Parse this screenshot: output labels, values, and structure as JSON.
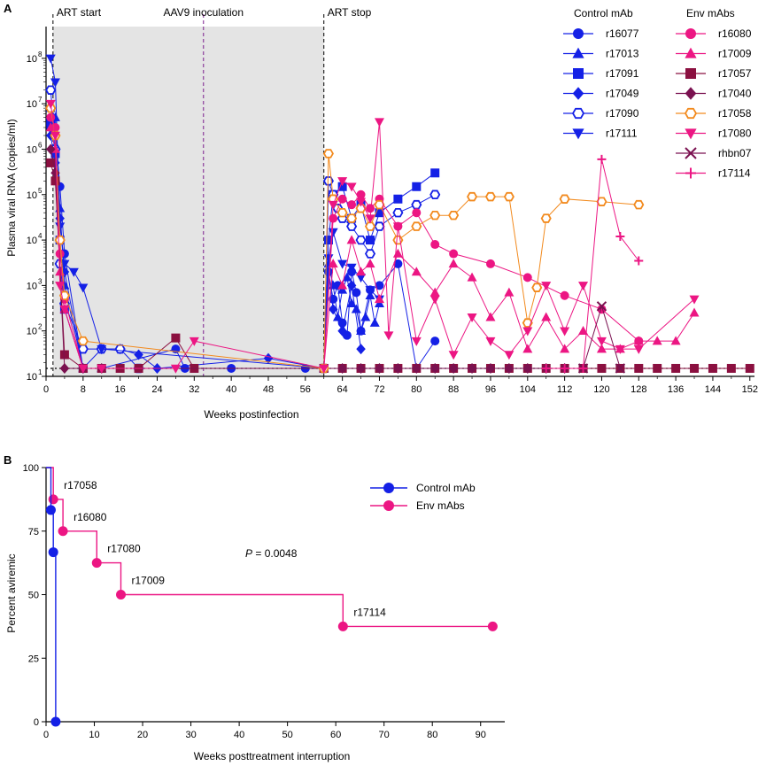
{
  "chart_data": [
    {
      "panel_label": "A",
      "type": "line",
      "xlabel": "Weeks postinfection",
      "ylabel": "Plasma viral RNA (copies/ml)",
      "xlim": [
        0,
        153
      ],
      "xticks": [
        0,
        8,
        16,
        24,
        32,
        40,
        48,
        56,
        64,
        72,
        80,
        88,
        96,
        104,
        112,
        120,
        128,
        136,
        144,
        152
      ],
      "ylim": [
        10,
        500000000
      ],
      "yscale": "log",
      "yticks": [
        10,
        100,
        1000,
        10000,
        100000,
        1000000,
        10000000,
        100000000
      ],
      "ytick_labels": [
        "10",
        "10",
        "10",
        "10",
        "10",
        "10",
        "10",
        "10"
      ],
      "ytick_exponents": [
        "1",
        "2",
        "3",
        "4",
        "5",
        "6",
        "7",
        "8"
      ],
      "detection_limit": 15,
      "shaded_region": [
        1.5,
        60
      ],
      "events": [
        {
          "label": "ART start",
          "x": 1.5
        },
        {
          "label": "AAV9 inoculation",
          "x": 34
        },
        {
          "label": "ART stop",
          "x": 60
        }
      ],
      "legend_groups": [
        {
          "title": "Control mAb",
          "color": "#1420E6",
          "entries": [
            {
              "name": "r16077",
              "marker": "circle"
            },
            {
              "name": "r17013",
              "marker": "triangle-up"
            },
            {
              "name": "r17091",
              "marker": "square"
            },
            {
              "name": "r17049",
              "marker": "diamond"
            },
            {
              "name": "r17090",
              "marker": "hexagon-open"
            },
            {
              "name": "r17111",
              "marker": "triangle-down"
            }
          ]
        },
        {
          "title": "Env mAbs",
          "entries": [
            {
              "name": "r16080",
              "marker": "circle",
              "color": "#EC1683"
            },
            {
              "name": "r17009",
              "marker": "triangle-up",
              "color": "#EC1683"
            },
            {
              "name": "r17057",
              "marker": "square",
              "color": "#8B1040"
            },
            {
              "name": "r17040",
              "marker": "diamond",
              "color": "#7A1150"
            },
            {
              "name": "r17058",
              "marker": "hexagon-open",
              "color": "#F28A1E"
            },
            {
              "name": "r17080",
              "marker": "triangle-down",
              "color": "#EC1683"
            },
            {
              "name": "rhbn07",
              "marker": "x",
              "color": "#7A1150"
            },
            {
              "name": "r17114",
              "marker": "plus",
              "color": "#EC1683"
            }
          ]
        }
      ],
      "series": [
        {
          "name": "r16077",
          "color": "#1420E6",
          "marker": "circle",
          "x": [
            1,
            2,
            3,
            4,
            8,
            12,
            28,
            30,
            40,
            56,
            60,
            61,
            62,
            63,
            64,
            65,
            66,
            67,
            68,
            70,
            72,
            76,
            80,
            84
          ],
          "y": [
            3000000,
            2000000,
            150000,
            5000,
            15,
            15,
            40,
            15,
            15,
            15,
            15,
            2000,
            500,
            1000,
            150,
            80,
            2000,
            700,
            100,
            800,
            1000,
            3000,
            15,
            60
          ]
        },
        {
          "name": "r17013",
          "color": "#1420E6",
          "marker": "triangle-up",
          "x": [
            1,
            2,
            3,
            4,
            8,
            12,
            60,
            61,
            62,
            63,
            64,
            65,
            66,
            67,
            68,
            69,
            70,
            71,
            72
          ],
          "y": [
            8000000,
            5000000,
            50000,
            1000,
            15,
            15,
            15,
            3000,
            1000,
            200,
            800,
            1500,
            400,
            300,
            100,
            200,
            600,
            150,
            400
          ]
        },
        {
          "name": "r17091",
          "color": "#1420E6",
          "marker": "square",
          "x": [
            1,
            2,
            3,
            4,
            8,
            60,
            61,
            62,
            64,
            66,
            68,
            70,
            72,
            76,
            80,
            84
          ],
          "y": [
            4000000,
            800000,
            10000,
            300,
            15,
            15,
            10000,
            100000,
            150000,
            30000,
            60000,
            10000,
            40000,
            80000,
            150000,
            300000
          ]
        },
        {
          "name": "r17049",
          "color": "#1420E6",
          "marker": "diamond",
          "x": [
            1,
            2,
            3,
            4,
            8,
            12,
            16,
            20,
            24,
            48,
            60,
            61,
            62,
            64,
            66,
            68
          ],
          "y": [
            2000000,
            500000,
            30000,
            2000,
            15,
            40,
            40,
            30,
            15,
            25,
            15,
            2000,
            300,
            100,
            1000,
            40
          ]
        },
        {
          "name": "r17090",
          "color": "#1420E6",
          "marker": "hexagon-open",
          "x": [
            1,
            2,
            3,
            4,
            8,
            12,
            16,
            20,
            60,
            61,
            62,
            63,
            64,
            66,
            68,
            70,
            72,
            76,
            80,
            84
          ],
          "y": [
            20000000,
            1000000,
            3000,
            400,
            40,
            40,
            40,
            15,
            15,
            200000,
            100000,
            50000,
            30000,
            20000,
            10000,
            5000,
            20000,
            40000,
            60000,
            100000
          ]
        },
        {
          "name": "r17111",
          "color": "#1420E6",
          "marker": "triangle-down",
          "x": [
            1,
            2,
            3,
            4,
            6,
            8,
            12,
            60,
            61,
            62,
            64,
            66,
            68,
            70,
            72
          ],
          "y": [
            100000000,
            30000000,
            20000,
            3000,
            2000,
            900,
            40,
            15,
            4000,
            15000,
            3000,
            2500,
            1500,
            800,
            500
          ]
        },
        {
          "name": "r16080",
          "color": "#EC1683",
          "marker": "circle",
          "x": [
            1,
            2,
            3,
            4,
            8,
            12,
            60,
            62,
            64,
            66,
            68,
            70,
            72,
            76,
            80,
            84,
            88,
            96,
            104,
            112,
            120,
            128
          ],
          "y": [
            5000000,
            3000000,
            5000,
            500,
            15,
            15,
            15,
            30000,
            80000,
            60000,
            100000,
            50000,
            80000,
            20000,
            40000,
            8000,
            5000,
            3000,
            1500,
            600,
            300,
            60
          ]
        },
        {
          "name": "r17009",
          "color": "#EC1683",
          "marker": "triangle-up",
          "x": [
            1,
            2,
            3,
            4,
            8,
            60,
            62,
            64,
            66,
            68,
            70,
            72,
            76,
            80,
            84,
            88,
            92,
            96,
            100,
            104,
            108,
            112,
            116,
            120,
            124,
            128,
            132,
            136,
            140
          ],
          "y": [
            3000000,
            1000000,
            2000,
            300,
            15,
            15,
            3000,
            1000,
            10000,
            2000,
            3000,
            500,
            5000,
            2000,
            700,
            3000,
            1500,
            200,
            700,
            40,
            200,
            40,
            100,
            40,
            40,
            60,
            60,
            60,
            250
          ]
        },
        {
          "name": "r17057",
          "color": "#8B1040",
          "marker": "square",
          "x": [
            1,
            2,
            4,
            8,
            12,
            16,
            20,
            28,
            32,
            60,
            64,
            68,
            72,
            76,
            80,
            84,
            88,
            92,
            96,
            100,
            104,
            108,
            112,
            116,
            120,
            124,
            128,
            132,
            136,
            140,
            144,
            148,
            152
          ],
          "y": [
            500000,
            200000,
            30,
            15,
            15,
            15,
            15,
            70,
            15,
            15,
            15,
            15,
            15,
            15,
            15,
            15,
            15,
            15,
            15,
            15,
            15,
            15,
            15,
            15,
            15,
            15,
            15,
            15,
            15,
            15,
            15,
            15,
            15
          ]
        },
        {
          "name": "r17040",
          "color": "#7A1150",
          "marker": "diamond",
          "x": [
            1,
            2,
            4,
            8,
            12,
            60,
            64,
            68,
            72,
            76,
            80,
            84,
            88,
            92,
            96,
            100,
            104,
            108,
            112
          ],
          "y": [
            1000000,
            300000,
            15,
            15,
            15,
            15,
            15,
            15,
            15,
            15,
            15,
            15,
            15,
            15,
            15,
            15,
            15,
            15,
            15
          ]
        },
        {
          "name": "r17058",
          "color": "#F28A1E",
          "marker": "hexagon-open",
          "x": [
            1,
            2,
            3,
            4,
            8,
            60,
            61,
            62,
            64,
            66,
            68,
            70,
            72,
            76,
            80,
            84,
            88,
            92,
            96,
            100,
            104,
            106,
            108,
            112,
            120,
            128
          ],
          "y": [
            8000000,
            2000000,
            10000,
            600,
            60,
            15,
            800000,
            80000,
            40000,
            30000,
            50000,
            20000,
            60000,
            10000,
            20000,
            35000,
            35000,
            90000,
            90000,
            90000,
            150,
            900,
            30000,
            80000,
            70000,
            60000
          ]
        },
        {
          "name": "r17080",
          "color": "#EC1683",
          "marker": "triangle-down",
          "x": [
            1,
            2,
            3,
            4,
            8,
            12,
            28,
            32,
            60,
            62,
            64,
            66,
            68,
            70,
            72,
            74,
            76,
            80,
            84,
            88,
            92,
            96,
            100,
            104,
            108,
            112,
            116,
            120,
            124,
            128,
            140
          ],
          "y": [
            10000000,
            2000000,
            1000,
            300,
            15,
            15,
            15,
            60,
            15,
            60000,
            200000,
            150000,
            70000,
            30000,
            4000000,
            80,
            20000,
            60,
            500,
            30,
            200,
            60,
            30,
            100,
            1000,
            100,
            1000,
            60,
            40,
            40,
            500
          ]
        },
        {
          "name": "rhbn07",
          "color": "#7A1150",
          "marker": "x",
          "x": [
            116,
            120,
            124
          ],
          "y": [
            15,
            350,
            15
          ]
        },
        {
          "name": "r17114",
          "color": "#EC1683",
          "marker": "plus",
          "x": [
            108,
            112,
            116,
            120,
            124,
            128
          ],
          "y": [
            15,
            15,
            15,
            600000,
            12000,
            3500
          ]
        }
      ]
    },
    {
      "panel_label": "B",
      "type": "line",
      "step": true,
      "xlabel": "Weeks posttreatment interruption",
      "ylabel": "Percent aviremic",
      "xlim": [
        0,
        95
      ],
      "xticks": [
        0,
        10,
        20,
        30,
        40,
        50,
        60,
        70,
        80,
        90
      ],
      "ylim": [
        0,
        100
      ],
      "yticks": [
        0,
        25,
        50,
        75,
        100
      ],
      "p_value_label": "P",
      "p_value_text": " = 0.0048",
      "series": [
        {
          "name": "Control mAb",
          "color": "#1420E6",
          "x": [
            0,
            1,
            1.5,
            2
          ],
          "y": [
            100,
            83.3,
            66.7,
            0
          ]
        },
        {
          "name": "Env mAbs",
          "color": "#EC1683",
          "x": [
            0,
            1.5,
            3.5,
            10.5,
            15.5,
            61.5,
            92.5
          ],
          "y": [
            100,
            87.5,
            75,
            62.5,
            50,
            37.5,
            37.5
          ]
        }
      ],
      "annotations": [
        {
          "text": "r17058",
          "x": 1.5,
          "y": 87.5
        },
        {
          "text": "r16080",
          "x": 3.5,
          "y": 75
        },
        {
          "text": "r17080",
          "x": 10.5,
          "y": 62.5
        },
        {
          "text": "r17009",
          "x": 15.5,
          "y": 50
        },
        {
          "text": "r17114",
          "x": 61.5,
          "y": 37.5
        }
      ]
    }
  ]
}
